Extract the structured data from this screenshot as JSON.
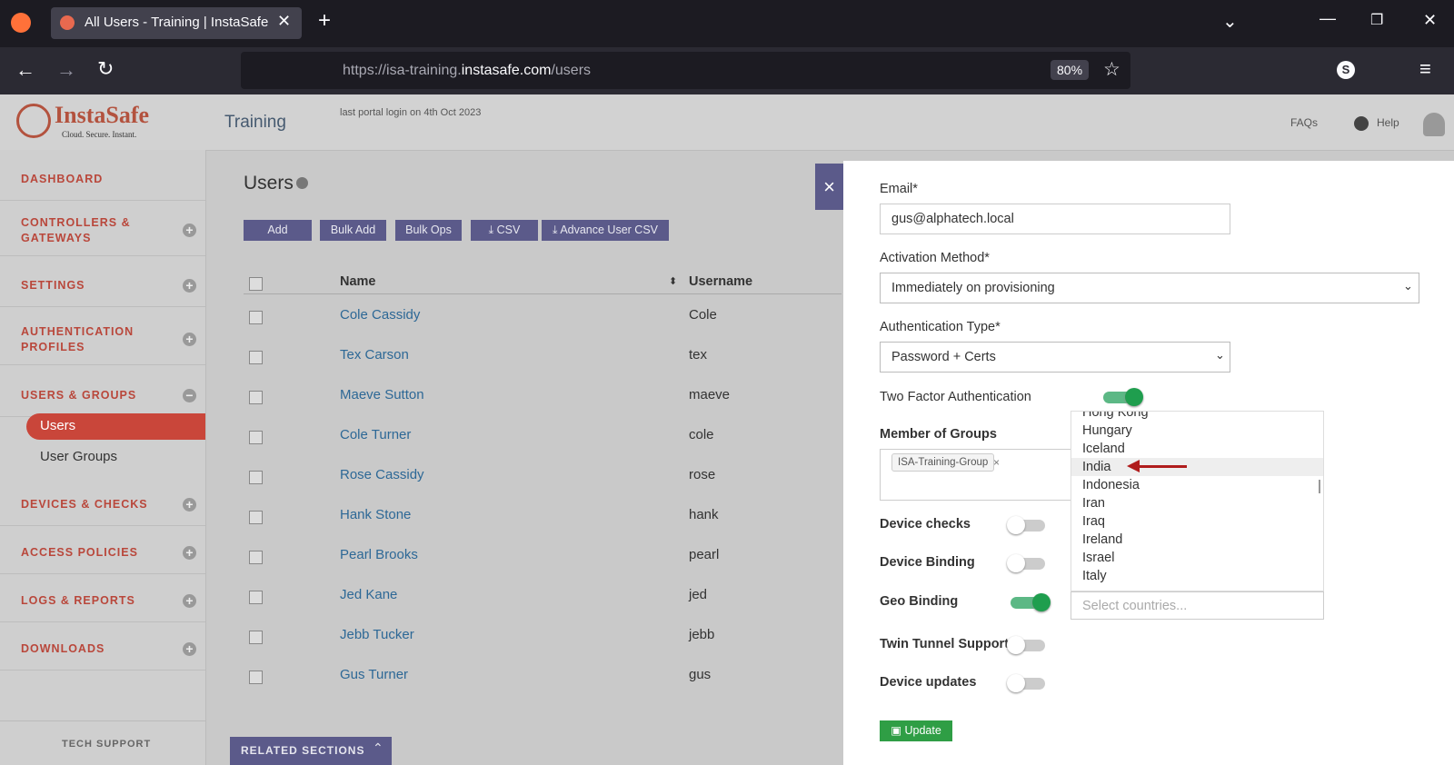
{
  "browser": {
    "tab_title": "All Users - Training | InstaSafe",
    "url_prefix": "https://isa-training.",
    "url_domain": "instasafe.com",
    "url_path": "/users",
    "zoom": "80%",
    "profile": "S"
  },
  "header": {
    "logo": "InstaSafe",
    "logo_tagline": "Cloud. Secure. Instant.",
    "portal": "Training",
    "last_login": "last portal login on 4th Oct 2023",
    "faqs": "FAQs",
    "help": "Help"
  },
  "sidebar": {
    "items": [
      {
        "label": "DASHBOARD"
      },
      {
        "label": "CONTROLLERS & GATEWAYS",
        "toggle": "plus"
      },
      {
        "label": "SETTINGS",
        "toggle": "plus"
      },
      {
        "label": "AUTHENTICATION PROFILES",
        "toggle": "plus"
      },
      {
        "label": "USERS & GROUPS",
        "toggle": "minus",
        "sub_items": [
          "Users",
          "User Groups"
        ]
      },
      {
        "label": "DEVICES & CHECKS",
        "toggle": "plus"
      },
      {
        "label": "ACCESS POLICIES",
        "toggle": "plus"
      },
      {
        "label": "LOGS & REPORTS",
        "toggle": "plus"
      },
      {
        "label": "DOWNLOADS",
        "toggle": "plus"
      }
    ],
    "footer": "TECH SUPPORT"
  },
  "users": {
    "title": "Users",
    "buttons": [
      "Add",
      "Bulk Add",
      "Bulk Ops",
      "CSV",
      "Advance User CSV"
    ],
    "columns": [
      "Name",
      "Username"
    ],
    "rows": [
      [
        "Cole Cassidy",
        "Cole"
      ],
      [
        "Tex Carson",
        "tex"
      ],
      [
        "Maeve Sutton",
        "maeve"
      ],
      [
        "Cole Turner",
        "cole"
      ],
      [
        "Rose Cassidy",
        "rose"
      ],
      [
        "Hank Stone",
        "hank"
      ],
      [
        "Pearl Brooks",
        "pearl"
      ],
      [
        "Jed Kane",
        "jed"
      ],
      [
        "Jebb Tucker",
        "jebb"
      ],
      [
        "Gus Turner",
        "gus"
      ]
    ],
    "related": "RELATED SECTIONS"
  },
  "panel": {
    "email_label": "Email*",
    "email": "gus@alphatech.local",
    "activation_label": "Activation Method*",
    "activation": "Immediately on provisioning",
    "auth_label": "Authentication Type*",
    "auth": "Password + Certs",
    "two_factor_label": "Two Factor Authentication",
    "two_factor_on": true,
    "groups_label": "Member of Groups",
    "group_tag": "ISA-Training-Group",
    "countries": [
      "Hong Kong",
      "Hungary",
      "Iceland",
      "India",
      "Indonesia",
      "Iran",
      "Iraq",
      "Ireland",
      "Israel",
      "Italy"
    ],
    "highlighted_country": 3,
    "country_placeholder": "Select countries...",
    "toggles": [
      {
        "label": "Device checks",
        "on": false
      },
      {
        "label": "Device Binding",
        "on": false
      },
      {
        "label": "Geo Binding",
        "on": true
      },
      {
        "label": "Twin Tunnel Support",
        "on": false
      },
      {
        "label": "Device updates",
        "on": false
      }
    ],
    "update": "Update"
  }
}
